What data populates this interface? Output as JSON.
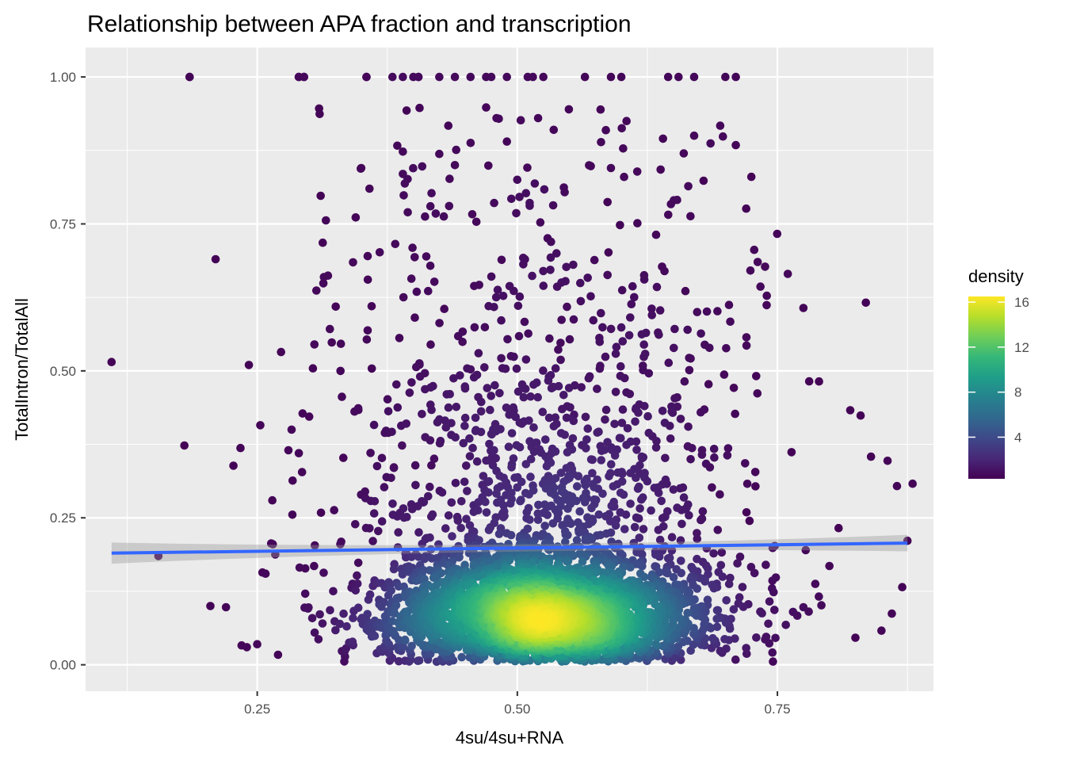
{
  "chart_data": {
    "type": "scatter",
    "title": "Relationship between APA fraction and transcription",
    "xlabel": "4su/4su+RNA",
    "ylabel": "TotalIntron/TotalAll",
    "xlim": [
      0.085,
      0.9
    ],
    "ylim": [
      -0.045,
      1.05
    ],
    "x_ticks": [
      0.25,
      0.5,
      0.75
    ],
    "x_tick_labels": [
      "0.25",
      "0.50",
      "0.75"
    ],
    "y_ticks": [
      0.0,
      0.25,
      0.5,
      0.75,
      1.0
    ],
    "y_tick_labels": [
      "0.00",
      "0.25",
      "0.50",
      "0.75",
      "1.00"
    ],
    "grid": true,
    "point_color_by": "density",
    "legend": {
      "title": "density",
      "placement": "right",
      "range": [
        0.3,
        16.5
      ],
      "ticks": [
        4,
        8,
        12,
        16
      ],
      "tick_labels": [
        "4",
        "8",
        "12",
        "16"
      ],
      "colormap": [
        "#440154",
        "#482878",
        "#3e4989",
        "#31688e",
        "#26828e",
        "#1f9e89",
        "#35b779",
        "#6ece58",
        "#b5de2b",
        "#fde725"
      ]
    },
    "trend_line": {
      "method": "lm",
      "color": "#3366ff",
      "points": [
        [
          0.11,
          0.19
        ],
        [
          0.875,
          0.207
        ]
      ],
      "ci_halfwidth_ends": 0.018,
      "ci_halfwidth_mid": 0.006
    },
    "n_points_approx": 4000,
    "density_center": [
      0.53,
      0.085
    ],
    "highlight_points": [
      [
        0.11,
        0.515
      ],
      [
        0.155,
        0.185
      ],
      [
        0.18,
        0.373
      ],
      [
        0.185,
        1.0
      ],
      [
        0.205,
        0.1
      ],
      [
        0.21,
        0.69
      ],
      [
        0.22,
        0.098
      ],
      [
        0.235,
        0.033
      ],
      [
        0.24,
        0.03
      ],
      [
        0.242,
        0.51
      ],
      [
        0.25,
        0.035
      ],
      [
        0.255,
        0.157
      ],
      [
        0.258,
        0.155
      ],
      [
        0.265,
        0.205
      ],
      [
        0.27,
        0.017
      ],
      [
        0.28,
        0.365
      ],
      [
        0.283,
        0.4
      ],
      [
        0.29,
        0.36
      ],
      [
        0.29,
        1.0
      ],
      [
        0.295,
        1.0
      ],
      [
        0.305,
        0.545
      ],
      [
        0.31,
        0.937
      ],
      [
        0.313,
        0.718
      ],
      [
        0.316,
        0.756
      ],
      [
        0.318,
        0.662
      ],
      [
        0.33,
        0.5
      ],
      [
        0.35,
        0.845
      ],
      [
        0.36,
        0.61
      ],
      [
        0.355,
        1.0
      ],
      [
        0.39,
        0.873
      ],
      [
        0.39,
        0.835
      ],
      [
        0.405,
        1.0
      ],
      [
        0.425,
        0.869
      ],
      [
        0.44,
        0.85
      ],
      [
        0.47,
        0.948
      ],
      [
        0.48,
        0.93
      ],
      [
        0.49,
        0.89
      ],
      [
        0.5,
        0.825
      ],
      [
        0.52,
        0.93
      ],
      [
        0.535,
        0.91
      ],
      [
        0.59,
        0.845
      ],
      [
        0.605,
        0.925
      ],
      [
        0.64,
        0.895
      ],
      [
        0.66,
        0.87
      ],
      [
        0.67,
        0.9
      ],
      [
        0.695,
        0.917
      ],
      [
        0.71,
        0.884
      ],
      [
        0.72,
        0.776
      ],
      [
        0.725,
        0.83
      ],
      [
        0.76,
        0.665
      ],
      [
        0.775,
        0.607
      ],
      [
        0.79,
        0.482
      ],
      [
        0.82,
        0.433
      ],
      [
        0.83,
        0.424
      ],
      [
        0.835,
        0.616
      ],
      [
        0.865,
        0.304
      ],
      [
        0.87,
        0.132
      ],
      [
        0.875,
        0.211
      ],
      [
        0.88,
        0.308
      ],
      [
        0.86,
        0.087
      ],
      [
        0.85,
        0.058
      ],
      [
        0.84,
        0.354
      ],
      [
        0.825,
        0.046
      ],
      [
        0.8,
        0.168
      ],
      [
        0.775,
        0.098
      ],
      [
        0.765,
        0.09
      ]
    ]
  }
}
